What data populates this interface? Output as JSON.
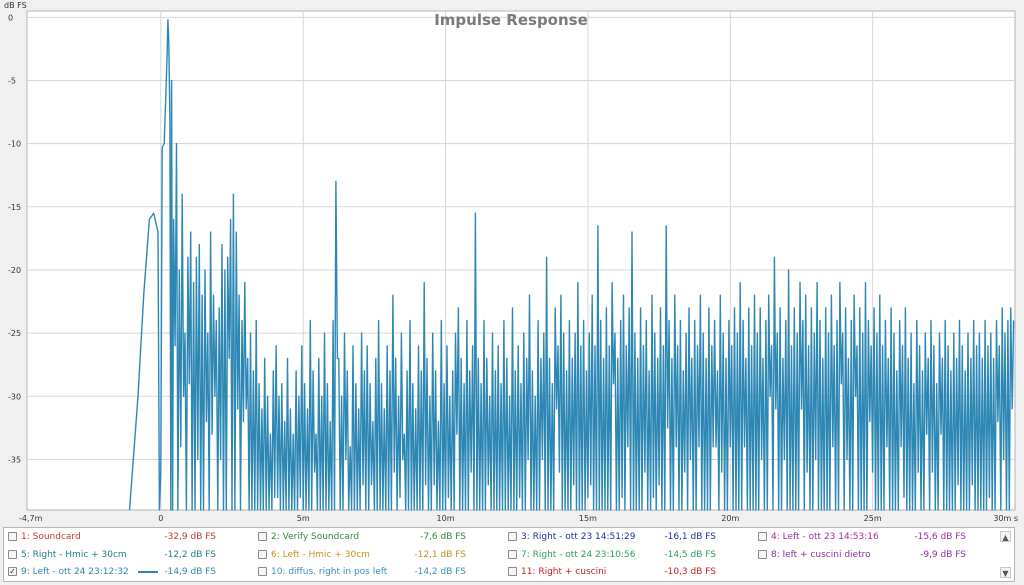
{
  "chart_data": {
    "type": "line",
    "title": "Impulse Response",
    "ylabel": "dB FS",
    "xlabel": "ms",
    "xlim": [
      -4.7,
      30
    ],
    "ylim": [
      -39,
      0.5
    ],
    "grid": true,
    "xticks": [
      {
        "v": -4.7,
        "label": "-4,7m"
      },
      {
        "v": 0,
        "label": "0"
      },
      {
        "v": 5,
        "label": "5m"
      },
      {
        "v": 10,
        "label": "10m"
      },
      {
        "v": 15,
        "label": "15m"
      },
      {
        "v": 20,
        "label": "20m"
      },
      {
        "v": 25,
        "label": "25m"
      },
      {
        "v": 30,
        "label": "30m s"
      }
    ],
    "yticks": [
      {
        "v": 0,
        "label": "0"
      },
      {
        "v": -5,
        "label": "-5"
      },
      {
        "v": -10,
        "label": "-10"
      },
      {
        "v": -15,
        "label": "-15"
      },
      {
        "v": -20,
        "label": "-20"
      },
      {
        "v": -25,
        "label": "-25"
      },
      {
        "v": -30,
        "label": "-30"
      },
      {
        "v": -35,
        "label": "-35"
      }
    ],
    "line_color": "#2d87b4",
    "peaks": [
      [
        -1.1,
        -39
      ],
      [
        -0.8,
        -30
      ],
      [
        -0.6,
        -22
      ],
      [
        -0.4,
        -16
      ],
      [
        -0.25,
        -15.5
      ],
      [
        -0.1,
        -17
      ],
      [
        -0.05,
        -39
      ],
      [
        0.0,
        -36
      ],
      [
        0.05,
        -10.3
      ],
      [
        0.12,
        -10
      ],
      [
        0.18,
        -6
      ],
      [
        0.22,
        -3
      ],
      [
        0.25,
        -0.2
      ],
      [
        0.28,
        -2
      ],
      [
        0.32,
        -8
      ],
      [
        0.38,
        -5
      ],
      [
        0.45,
        -16
      ],
      [
        0.55,
        -10
      ],
      [
        0.65,
        -20
      ],
      [
        0.75,
        -14
      ],
      [
        0.85,
        -25
      ],
      [
        0.95,
        -19
      ],
      [
        1.05,
        -17
      ],
      [
        1.15,
        -21
      ],
      [
        1.25,
        -19
      ],
      [
        1.35,
        -18
      ],
      [
        1.45,
        -22
      ],
      [
        1.55,
        -20
      ],
      [
        1.65,
        -25
      ],
      [
        1.75,
        -17
      ],
      [
        1.85,
        -22
      ],
      [
        1.95,
        -24
      ],
      [
        2.05,
        -23
      ],
      [
        2.15,
        -18
      ],
      [
        2.25,
        -20
      ],
      [
        2.35,
        -19
      ],
      [
        2.45,
        -16
      ],
      [
        2.55,
        -14
      ],
      [
        2.65,
        -17
      ],
      [
        2.75,
        -22
      ],
      [
        2.85,
        -24
      ],
      [
        2.95,
        -21
      ],
      [
        3.05,
        -27
      ],
      [
        3.15,
        -25
      ],
      [
        3.25,
        -28
      ],
      [
        3.35,
        -24
      ],
      [
        3.45,
        -29
      ],
      [
        3.55,
        -31
      ],
      [
        3.65,
        -27
      ],
      [
        3.75,
        -30
      ],
      [
        3.85,
        -33
      ],
      [
        3.95,
        -28
      ],
      [
        4.05,
        -26
      ],
      [
        4.15,
        -30
      ],
      [
        4.25,
        -29
      ],
      [
        4.35,
        -32
      ],
      [
        4.45,
        -27
      ],
      [
        4.55,
        -31
      ],
      [
        4.65,
        -33
      ],
      [
        4.75,
        -28
      ],
      [
        4.85,
        -30
      ],
      [
        4.95,
        -26
      ],
      [
        5.05,
        -29
      ],
      [
        5.15,
        -31
      ],
      [
        5.25,
        -24
      ],
      [
        5.35,
        -28
      ],
      [
        5.45,
        -33
      ],
      [
        5.55,
        -27
      ],
      [
        5.65,
        -30
      ],
      [
        5.75,
        -25
      ],
      [
        5.85,
        -29
      ],
      [
        5.95,
        -32
      ],
      [
        6.05,
        -24
      ],
      [
        6.15,
        -13
      ],
      [
        6.25,
        -27
      ],
      [
        6.35,
        -30
      ],
      [
        6.45,
        -25
      ],
      [
        6.55,
        -28
      ],
      [
        6.65,
        -34
      ],
      [
        6.75,
        -26
      ],
      [
        6.85,
        -29
      ],
      [
        6.95,
        -31
      ],
      [
        7.05,
        -25
      ],
      [
        7.15,
        -28
      ],
      [
        7.25,
        -26
      ],
      [
        7.35,
        -29
      ],
      [
        7.45,
        -32
      ],
      [
        7.55,
        -27
      ],
      [
        7.65,
        -24
      ],
      [
        7.75,
        -29
      ],
      [
        7.85,
        -31
      ],
      [
        7.95,
        -26
      ],
      [
        8.05,
        -28
      ],
      [
        8.15,
        -22
      ],
      [
        8.25,
        -27
      ],
      [
        8.35,
        -30
      ],
      [
        8.45,
        -25
      ],
      [
        8.55,
        -33
      ],
      [
        8.65,
        -28
      ],
      [
        8.75,
        -24
      ],
      [
        8.85,
        -29
      ],
      [
        8.95,
        -31
      ],
      [
        9.05,
        -26
      ],
      [
        9.15,
        -28
      ],
      [
        9.25,
        -21
      ],
      [
        9.35,
        -27
      ],
      [
        9.45,
        -30
      ],
      [
        9.55,
        -25
      ],
      [
        9.65,
        -28
      ],
      [
        9.75,
        -32
      ],
      [
        9.85,
        -24
      ],
      [
        9.95,
        -29
      ],
      [
        10.05,
        -26
      ],
      [
        10.15,
        -30
      ],
      [
        10.25,
        -28
      ],
      [
        10.35,
        -25
      ],
      [
        10.45,
        -23
      ],
      [
        10.55,
        -27
      ],
      [
        10.65,
        -29
      ],
      [
        10.75,
        -24
      ],
      [
        10.85,
        -28
      ],
      [
        10.95,
        -26
      ],
      [
        11.05,
        -15.5
      ],
      [
        11.15,
        -27
      ],
      [
        11.25,
        -29
      ],
      [
        11.35,
        -24
      ],
      [
        11.45,
        -27
      ],
      [
        11.55,
        -30
      ],
      [
        11.65,
        -25
      ],
      [
        11.75,
        -28
      ],
      [
        11.85,
        -26
      ],
      [
        11.95,
        -29
      ],
      [
        12.05,
        -24
      ],
      [
        12.15,
        -27
      ],
      [
        12.25,
        -30
      ],
      [
        12.35,
        -23
      ],
      [
        12.45,
        -28
      ],
      [
        12.55,
        -26
      ],
      [
        12.65,
        -29
      ],
      [
        12.75,
        -25
      ],
      [
        12.85,
        -27
      ],
      [
        12.95,
        -22
      ],
      [
        13.05,
        -28
      ],
      [
        13.15,
        -30
      ],
      [
        13.25,
        -24
      ],
      [
        13.35,
        -27
      ],
      [
        13.45,
        -25
      ],
      [
        13.55,
        -19
      ],
      [
        13.65,
        -27
      ],
      [
        13.75,
        -29
      ],
      [
        13.85,
        -23
      ],
      [
        13.95,
        -26
      ],
      [
        14.05,
        -22
      ],
      [
        14.15,
        -25
      ],
      [
        14.25,
        -28
      ],
      [
        14.35,
        -24
      ],
      [
        14.45,
        -27
      ],
      [
        14.55,
        -25
      ],
      [
        14.65,
        -21
      ],
      [
        14.75,
        -26
      ],
      [
        14.85,
        -24
      ],
      [
        14.95,
        -28
      ],
      [
        15.05,
        -25
      ],
      [
        15.15,
        -22
      ],
      [
        15.25,
        -26
      ],
      [
        15.35,
        -16.5
      ],
      [
        15.45,
        -24
      ],
      [
        15.55,
        -27
      ],
      [
        15.65,
        -23
      ],
      [
        15.75,
        -26
      ],
      [
        15.85,
        -21
      ],
      [
        15.95,
        -25
      ],
      [
        16.05,
        -27
      ],
      [
        16.15,
        -24
      ],
      [
        16.25,
        -22
      ],
      [
        16.35,
        -26
      ],
      [
        16.45,
        -23
      ],
      [
        16.55,
        -17
      ],
      [
        16.65,
        -25
      ],
      [
        16.75,
        -27
      ],
      [
        16.85,
        -23
      ],
      [
        16.95,
        -26
      ],
      [
        17.05,
        -24
      ],
      [
        17.15,
        -28
      ],
      [
        17.25,
        -22
      ],
      [
        17.35,
        -25
      ],
      [
        17.45,
        -27
      ],
      [
        17.55,
        -23
      ],
      [
        17.65,
        -26
      ],
      [
        17.75,
        -16.5
      ],
      [
        17.85,
        -24
      ],
      [
        17.95,
        -27
      ],
      [
        18.05,
        -22
      ],
      [
        18.15,
        -26
      ],
      [
        18.25,
        -24
      ],
      [
        18.35,
        -28
      ],
      [
        18.45,
        -25
      ],
      [
        18.55,
        -23
      ],
      [
        18.65,
        -27
      ],
      [
        18.75,
        -24
      ],
      [
        18.85,
        -26
      ],
      [
        18.95,
        -22
      ],
      [
        19.05,
        -25
      ],
      [
        19.15,
        -27
      ],
      [
        19.25,
        -23
      ],
      [
        19.35,
        -26
      ],
      [
        19.45,
        -24
      ],
      [
        19.55,
        -28
      ],
      [
        19.65,
        -22
      ],
      [
        19.75,
        -25
      ],
      [
        19.85,
        -27
      ],
      [
        19.95,
        -24
      ],
      [
        20.05,
        -26
      ],
      [
        20.15,
        -23
      ],
      [
        20.25,
        -25
      ],
      [
        20.35,
        -21
      ],
      [
        20.45,
        -24
      ],
      [
        20.55,
        -27
      ],
      [
        20.65,
        -23
      ],
      [
        20.75,
        -26
      ],
      [
        20.85,
        -22
      ],
      [
        20.95,
        -25
      ],
      [
        21.05,
        -23
      ],
      [
        21.15,
        -27
      ],
      [
        21.25,
        -24
      ],
      [
        21.35,
        -22
      ],
      [
        21.45,
        -26
      ],
      [
        21.55,
        -19
      ],
      [
        21.65,
        -25
      ],
      [
        21.75,
        -23
      ],
      [
        21.85,
        -27
      ],
      [
        21.95,
        -24
      ],
      [
        22.05,
        -20
      ],
      [
        22.15,
        -26
      ],
      [
        22.25,
        -23
      ],
      [
        22.35,
        -25
      ],
      [
        22.45,
        -21
      ],
      [
        22.55,
        -24
      ],
      [
        22.65,
        -22
      ],
      [
        22.75,
        -26
      ],
      [
        22.85,
        -23
      ],
      [
        22.95,
        -25
      ],
      [
        23.05,
        -21
      ],
      [
        23.15,
        -24
      ],
      [
        23.25,
        -27
      ],
      [
        23.35,
        -23
      ],
      [
        23.45,
        -25
      ],
      [
        23.55,
        -22
      ],
      [
        23.65,
        -26
      ],
      [
        23.75,
        -24
      ],
      [
        23.85,
        -21
      ],
      [
        23.95,
        -25
      ],
      [
        24.05,
        -23
      ],
      [
        24.15,
        -27
      ],
      [
        24.25,
        -24
      ],
      [
        24.35,
        -22
      ],
      [
        24.45,
        -26
      ],
      [
        24.55,
        -23
      ],
      [
        24.65,
        -25
      ],
      [
        24.75,
        -21
      ],
      [
        24.85,
        -24
      ],
      [
        24.95,
        -26
      ],
      [
        25.05,
        -23
      ],
      [
        25.15,
        -25
      ],
      [
        25.25,
        -22
      ],
      [
        25.35,
        -26
      ],
      [
        25.45,
        -24
      ],
      [
        25.55,
        -27
      ],
      [
        25.65,
        -23
      ],
      [
        25.75,
        -25
      ],
      [
        25.85,
        -28
      ],
      [
        25.95,
        -24
      ],
      [
        26.05,
        -26
      ],
      [
        26.15,
        -23
      ],
      [
        26.25,
        -27
      ],
      [
        26.35,
        -25
      ],
      [
        26.45,
        -29
      ],
      [
        26.55,
        -24
      ],
      [
        26.65,
        -26
      ],
      [
        26.75,
        -28
      ],
      [
        26.85,
        -25
      ],
      [
        26.95,
        -27
      ],
      [
        27.05,
        -24
      ],
      [
        27.15,
        -26
      ],
      [
        27.25,
        -29
      ],
      [
        27.35,
        -25
      ],
      [
        27.45,
        -27
      ],
      [
        27.55,
        -24
      ],
      [
        27.65,
        -26
      ],
      [
        27.75,
        -28
      ],
      [
        27.85,
        -25
      ],
      [
        27.95,
        -27
      ],
      [
        28.05,
        -24
      ],
      [
        28.15,
        -26
      ],
      [
        28.25,
        -28
      ],
      [
        28.35,
        -25
      ],
      [
        28.45,
        -27
      ],
      [
        28.55,
        -24
      ],
      [
        28.65,
        -26
      ],
      [
        28.75,
        -25
      ],
      [
        28.85,
        -27
      ],
      [
        28.95,
        -24
      ],
      [
        29.05,
        -26
      ],
      [
        29.15,
        -25
      ],
      [
        29.25,
        -27
      ],
      [
        29.35,
        -24
      ],
      [
        29.45,
        -26
      ],
      [
        29.55,
        -23
      ],
      [
        29.65,
        -25
      ],
      [
        29.75,
        -24
      ],
      [
        29.85,
        -23
      ],
      [
        29.95,
        -24
      ]
    ]
  },
  "legend": {
    "items": [
      {
        "label": "1: Soundcard",
        "level": "-32,9 dB FS",
        "color": "#c0392b",
        "checked": false
      },
      {
        "label": "2: Verify Soundcard",
        "level": "-7,6 dB FS",
        "color": "#2e8b3a",
        "checked": false
      },
      {
        "label": "3: Right - ott 23 14:51:29",
        "level": "-16,1 dB FS",
        "color": "#1f2f9e",
        "checked": false
      },
      {
        "label": "4: Left - ott 23 14:53:16",
        "level": "-15,6 dB FS",
        "color": "#a52aa0",
        "checked": false
      },
      {
        "label": "5: Right - Hmic + 30cm",
        "level": "-12,2 dB FS",
        "color": "#1f7f88",
        "checked": false
      },
      {
        "label": "6: Left - Hmic + 30cm",
        "level": "-12,1 dB FS",
        "color": "#c8901e",
        "checked": false
      },
      {
        "label": "7: Right - ott 24 23:10:56",
        "level": "-14,5 dB FS",
        "color": "#2aa05a",
        "checked": false
      },
      {
        "label": "8: left + cuscini dietro",
        "level": "-9,9 dB FS",
        "color": "#8b2fa0",
        "checked": false
      },
      {
        "label": "9: Left - ott 24 23:12:32",
        "level": "-14,9 dB FS",
        "color": "#2d87b4",
        "checked": true
      },
      {
        "label": "10: diffus. right in pos left",
        "level": "-14,2 dB FS",
        "color": "#3a8fc0",
        "checked": false
      },
      {
        "label": "11: Right + cuscini",
        "level": "-10,3 dB FS",
        "color": "#c81e1e",
        "checked": false
      }
    ],
    "checkmark": "✓",
    "scroll_up_icon": "▲",
    "scroll_down_icon": "▼"
  }
}
